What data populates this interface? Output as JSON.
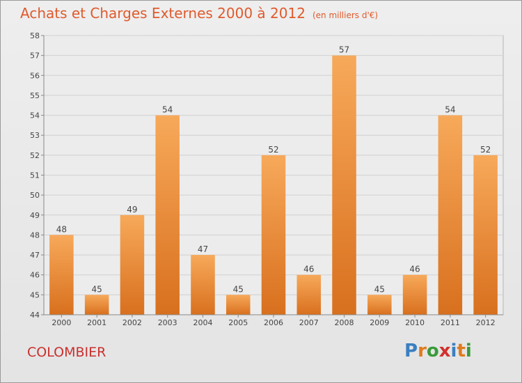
{
  "title": "Achats et Charges Externes 2000 à 2012",
  "unit_note": "(en milliers d'€)",
  "commune": "COLOMBIER",
  "logo": {
    "letters": [
      "P",
      "r",
      "o",
      "x",
      "i",
      "t",
      "i"
    ],
    "colors": [
      "#3a7fc1",
      "#e07b1c",
      "#3a9a3a",
      "#d2302e",
      "#3a7fc1",
      "#e07b1c",
      "#3a9a3a"
    ]
  },
  "colors": {
    "title": "#e05a2c",
    "bar_top": "#f7a95a",
    "bar_bottom": "#d8701e",
    "commune": "#c8302e"
  },
  "chart_data": {
    "type": "bar",
    "title": "Achats et Charges Externes 2000 à 2012",
    "subtitle": "(en milliers d'€)",
    "xlabel": "",
    "ylabel": "",
    "categories": [
      "2000",
      "2001",
      "2002",
      "2003",
      "2004",
      "2005",
      "2006",
      "2007",
      "2008",
      "2009",
      "2010",
      "2011",
      "2012"
    ],
    "values": [
      48,
      45,
      49,
      54,
      47,
      45,
      52,
      46,
      57,
      45,
      46,
      54,
      52
    ],
    "ylim": [
      44,
      58
    ],
    "yticks": [
      44,
      45,
      46,
      47,
      48,
      49,
      50,
      51,
      52,
      53,
      54,
      55,
      56,
      57,
      58
    ],
    "grid": true,
    "legend": "none"
  }
}
